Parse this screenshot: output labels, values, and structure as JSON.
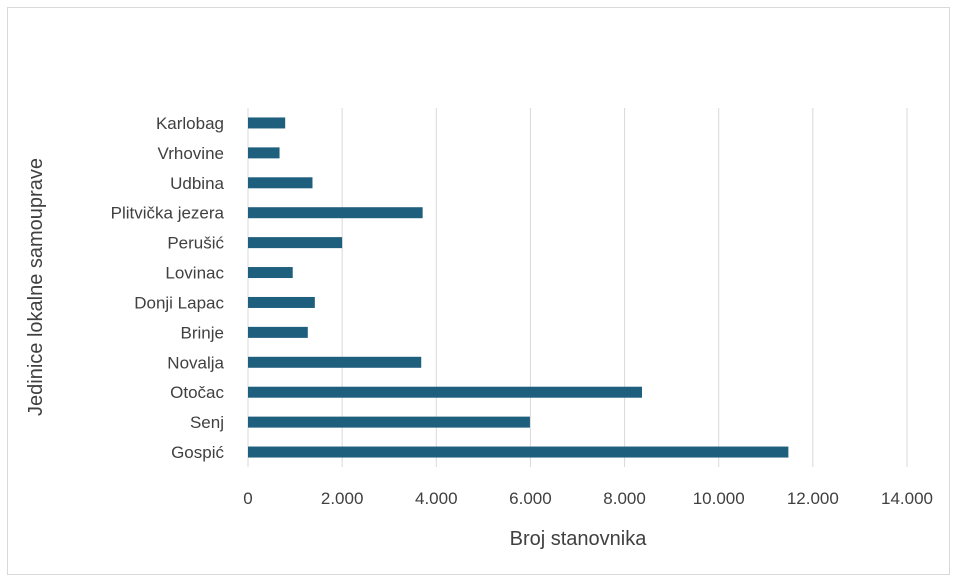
{
  "chart_data": {
    "type": "bar",
    "orientation": "horizontal",
    "title": "",
    "xlabel": "Broj stanovnika",
    "ylabel": "Jedinice lokalne samouprave",
    "categories": [
      "Gospić",
      "Senj",
      "Otočac",
      "Novalja",
      "Brinje",
      "Donji Lapac",
      "Lovinac",
      "Perušić",
      "Plitvička jezera",
      "Udbina",
      "Vrhovine",
      "Karlobag"
    ],
    "values": [
      11480,
      5990,
      8370,
      3680,
      1270,
      1420,
      950,
      2000,
      3710,
      1370,
      670,
      790
    ],
    "xlim": [
      0,
      14000
    ],
    "xticks": [
      0,
      2000,
      4000,
      6000,
      8000,
      10000,
      12000,
      14000
    ],
    "xtick_labels": [
      "0",
      "2.000",
      "4.000",
      "6.000",
      "8.000",
      "10.000",
      "12.000",
      "14.000"
    ],
    "grid": true,
    "legend": "none",
    "bar_color": "#1f5f7e",
    "grid_color": "#d9d9d9",
    "text_color": "#404040"
  }
}
